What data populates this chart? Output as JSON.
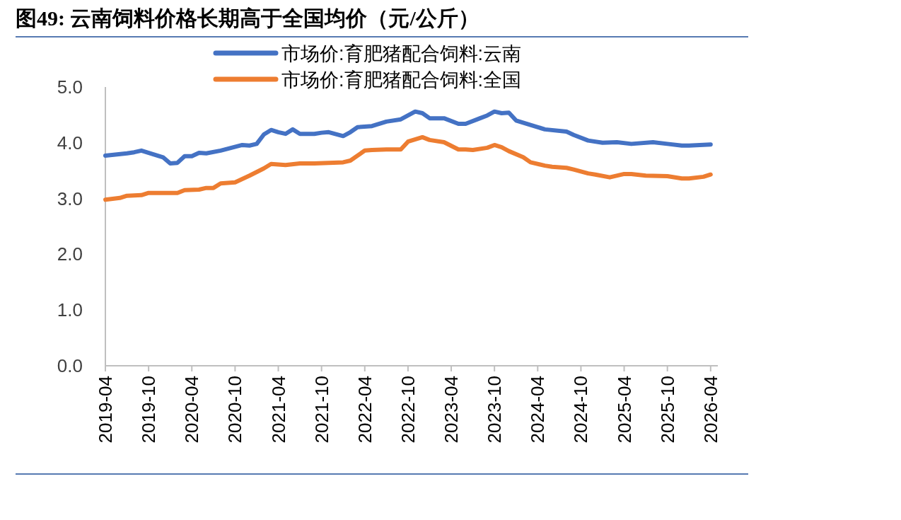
{
  "chart_data": {
    "type": "line",
    "title": "图49: 云南饲料价格长期高于全国均价（元/公斤）",
    "xlim": [
      "2019-04",
      "2026-05"
    ],
    "xticks": [
      {
        "value": "2019-04",
        "label": "2019-04"
      },
      {
        "value": "2019-10",
        "label": "2019-10"
      },
      {
        "value": "2020-04",
        "label": "2020-04"
      },
      {
        "value": "2020-10",
        "label": "2020-10"
      },
      {
        "value": "2021-04",
        "label": "2021-04"
      },
      {
        "value": "2021-10",
        "label": "2021-10"
      },
      {
        "value": "2022-04",
        "label": "2022-04"
      },
      {
        "value": "2022-10",
        "label": "2022-10"
      },
      {
        "value": "2023-04",
        "label": "2023-04"
      },
      {
        "value": "2023-10",
        "label": "2023-10"
      },
      {
        "value": "2024-04",
        "label": "2024-04"
      },
      {
        "value": "2024-10",
        "label": "2024-10"
      },
      {
        "value": "2025-04",
        "label": "2025-04"
      },
      {
        "value": "2025-10",
        "label": "2025-10"
      },
      {
        "value": "2026-04",
        "label": "2026-04"
      }
    ],
    "ylim": [
      0,
      5
    ],
    "yticks": [
      {
        "value": 0,
        "label": "0.0"
      },
      {
        "value": 1,
        "label": "1.0"
      },
      {
        "value": 2,
        "label": "2.0"
      },
      {
        "value": 3,
        "label": "3.0"
      },
      {
        "value": 4,
        "label": "4.0"
      },
      {
        "value": 5,
        "label": "5.0"
      }
    ],
    "grid": false,
    "legend": "top",
    "marker": "none",
    "line_style": "solid",
    "series": [
      {
        "name": "市场价:育肥猪配合饲料:云南",
        "color": "#4472c4",
        "x": [
          "2019-04",
          "2019-07",
          "2019-08",
          "2019-09",
          "2019-12",
          "2020-01",
          "2020-02",
          "2020-03",
          "2020-04",
          "2020-05",
          "2020-06",
          "2020-08",
          "2020-11",
          "2020-12",
          "2021-01",
          "2021-02",
          "2021-03",
          "2021-04",
          "2021-05",
          "2021-06",
          "2021-07",
          "2021-09",
          "2021-10",
          "2021-11",
          "2022-01",
          "2022-02",
          "2022-03",
          "2022-05",
          "2022-07",
          "2022-09",
          "2022-11",
          "2022-12",
          "2023-01",
          "2023-03",
          "2023-05",
          "2023-06",
          "2023-08",
          "2023-09",
          "2023-10",
          "2023-11",
          "2023-12",
          "2024-01",
          "2024-03",
          "2024-05",
          "2024-08",
          "2024-09",
          "2024-11",
          "2025-01",
          "2025-03",
          "2025-05",
          "2025-08",
          "2025-10",
          "2025-12",
          "2026-01",
          "2026-04"
        ],
        "values": [
          3.77,
          3.81,
          3.83,
          3.86,
          3.74,
          3.63,
          3.64,
          3.76,
          3.76,
          3.82,
          3.81,
          3.86,
          3.96,
          3.95,
          3.98,
          4.15,
          4.23,
          4.19,
          4.16,
          4.24,
          4.16,
          4.16,
          4.18,
          4.19,
          4.12,
          4.19,
          4.28,
          4.3,
          4.38,
          4.42,
          4.56,
          4.53,
          4.44,
          4.44,
          4.34,
          4.34,
          4.44,
          4.49,
          4.56,
          4.53,
          4.54,
          4.4,
          4.32,
          4.24,
          4.2,
          4.14,
          4.04,
          4.0,
          4.01,
          3.98,
          4.01,
          3.98,
          3.95,
          3.95,
          3.97
        ]
      },
      {
        "name": "市场价:育肥猪配合饲料:全国",
        "color": "#ed7d31",
        "x": [
          "2019-04",
          "2019-06",
          "2019-07",
          "2019-09",
          "2019-10",
          "2019-12",
          "2020-02",
          "2020-03",
          "2020-05",
          "2020-06",
          "2020-07",
          "2020-08",
          "2020-10",
          "2020-11",
          "2020-12",
          "2021-02",
          "2021-03",
          "2021-05",
          "2021-07",
          "2021-09",
          "2021-11",
          "2022-01",
          "2022-02",
          "2022-04",
          "2022-05",
          "2022-07",
          "2022-09",
          "2022-10",
          "2022-12",
          "2023-01",
          "2023-03",
          "2023-05",
          "2023-06",
          "2023-07",
          "2023-09",
          "2023-10",
          "2023-11",
          "2023-12",
          "2024-02",
          "2024-03",
          "2024-05",
          "2024-06",
          "2024-08",
          "2024-09",
          "2024-11",
          "2024-12",
          "2025-02",
          "2025-04",
          "2025-05",
          "2025-07",
          "2025-10",
          "2025-12",
          "2026-01",
          "2026-03",
          "2026-04"
        ],
        "values": [
          2.98,
          3.01,
          3.05,
          3.06,
          3.1,
          3.1,
          3.1,
          3.15,
          3.16,
          3.19,
          3.19,
          3.27,
          3.29,
          3.35,
          3.41,
          3.54,
          3.62,
          3.6,
          3.63,
          3.63,
          3.64,
          3.65,
          3.68,
          3.86,
          3.87,
          3.88,
          3.88,
          4.02,
          4.1,
          4.05,
          4.01,
          3.88,
          3.88,
          3.87,
          3.91,
          3.96,
          3.92,
          3.85,
          3.74,
          3.65,
          3.59,
          3.57,
          3.55,
          3.52,
          3.45,
          3.43,
          3.38,
          3.44,
          3.44,
          3.41,
          3.4,
          3.36,
          3.36,
          3.39,
          3.43
        ]
      }
    ]
  }
}
